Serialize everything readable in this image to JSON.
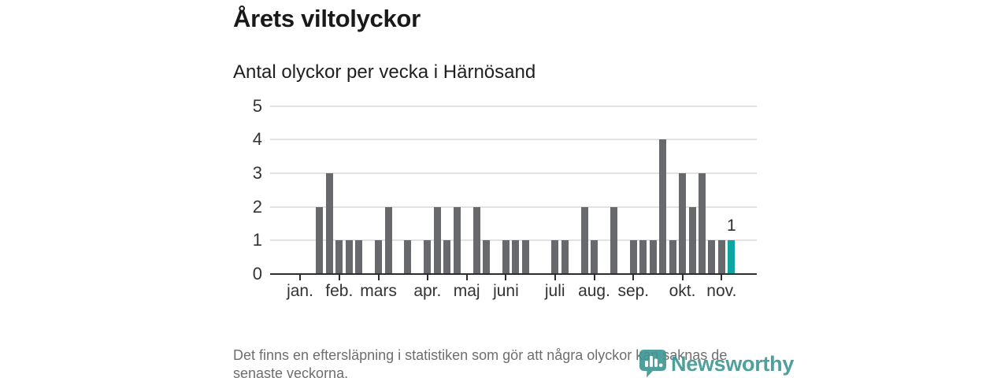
{
  "header": {
    "title": "Årets viltolyckor",
    "subtitle": "Antal olyckor per vecka i Härnösand"
  },
  "chart_data": {
    "type": "bar",
    "title": "Årets viltolyckor",
    "subtitle": "Antal olyckor per vecka i Härnösand",
    "x_unit": "vecka",
    "x_start_week": 1,
    "x_end_week": 45,
    "values": [
      0,
      0,
      2,
      3,
      1,
      1,
      1,
      0,
      1,
      2,
      0,
      1,
      0,
      1,
      2,
      1,
      2,
      0,
      2,
      1,
      0,
      1,
      1,
      1,
      0,
      0,
      1,
      1,
      0,
      2,
      1,
      0,
      2,
      0,
      1,
      1,
      1,
      4,
      1,
      3,
      2,
      3,
      1,
      1,
      1
    ],
    "ylim": [
      0,
      5
    ],
    "yticks": [
      0,
      1,
      2,
      3,
      4,
      5
    ],
    "grid": true,
    "legend": null,
    "month_ticks": [
      {
        "label": "jan.",
        "week": 1
      },
      {
        "label": "feb.",
        "week": 5
      },
      {
        "label": "mars",
        "week": 9
      },
      {
        "label": "apr.",
        "week": 14
      },
      {
        "label": "maj",
        "week": 18
      },
      {
        "label": "juni",
        "week": 22
      },
      {
        "label": "juli",
        "week": 27
      },
      {
        "label": "aug.",
        "week": 31
      },
      {
        "label": "sep.",
        "week": 35
      },
      {
        "label": "okt.",
        "week": 40
      },
      {
        "label": "nov.",
        "week": 44
      }
    ],
    "bar_color": "#67696d",
    "highlight": {
      "week": 45,
      "value": 1,
      "label": "1",
      "color": "#0ca5a2"
    }
  },
  "footer": {
    "note_lines": [
      "Det finns en eftersläpning i statistiken som gör att några olyckor kan saknas de",
      "senaste veckorna."
    ]
  },
  "logo": {
    "text": "Newsworthy",
    "icon": "newsworthy-pin-barchart-icon",
    "color": "#3d9692"
  },
  "colors": {
    "accent_teal": "#0ca5a2",
    "bar_gray": "#67696d",
    "axis": "#2e2e2e",
    "gridline": "#e2e2e2",
    "text_dark": "#191919",
    "text_muted": "#6e6e6e"
  }
}
